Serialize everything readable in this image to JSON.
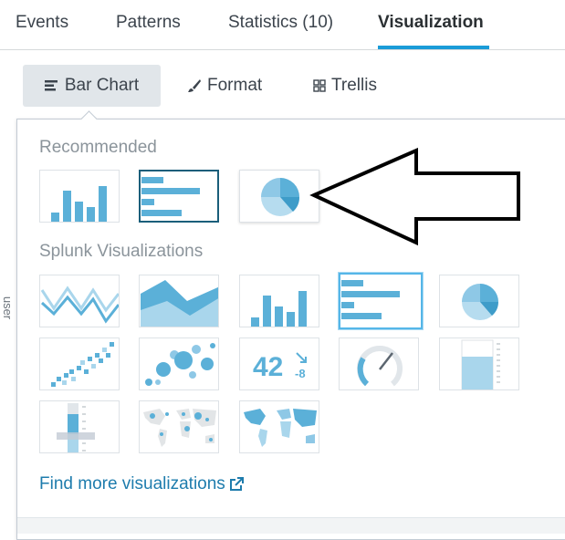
{
  "tabs": [
    {
      "label": "Events"
    },
    {
      "label": "Patterns"
    },
    {
      "label": "Statistics (10)"
    },
    {
      "label": "Visualization"
    }
  ],
  "viz_toolbar": {
    "chart_type": "Bar Chart",
    "format": "Format",
    "trellis": "Trellis"
  },
  "side_label": "user",
  "picker": {
    "recommended_title": "Recommended",
    "splunk_title": "Splunk Visualizations",
    "recommended": [
      {
        "icon": "column-chart-icon"
      },
      {
        "icon": "bar-chart-icon",
        "selected": true
      },
      {
        "icon": "pie-chart-icon"
      }
    ],
    "splunk": [
      {
        "icon": "line-chart-icon"
      },
      {
        "icon": "area-chart-icon"
      },
      {
        "icon": "column-chart-icon"
      },
      {
        "icon": "bar-chart-icon",
        "selected": true
      },
      {
        "icon": "pie-chart-icon"
      },
      {
        "icon": "scatter-chart-icon"
      },
      {
        "icon": "bubble-chart-icon"
      },
      {
        "icon": "single-value-icon",
        "value": "42",
        "delta": "-8"
      },
      {
        "icon": "radial-gauge-icon"
      },
      {
        "icon": "filler-gauge-icon"
      },
      {
        "icon": "marker-gauge-icon"
      },
      {
        "icon": "cluster-map-icon"
      },
      {
        "icon": "choropleth-map-icon"
      }
    ],
    "find_more": "Find more visualizations"
  },
  "colors": {
    "accent": "#1a9cd8",
    "viz_blue": "#5bb0d8",
    "viz_light": "#a9d6ec",
    "link": "#1e7cad"
  }
}
